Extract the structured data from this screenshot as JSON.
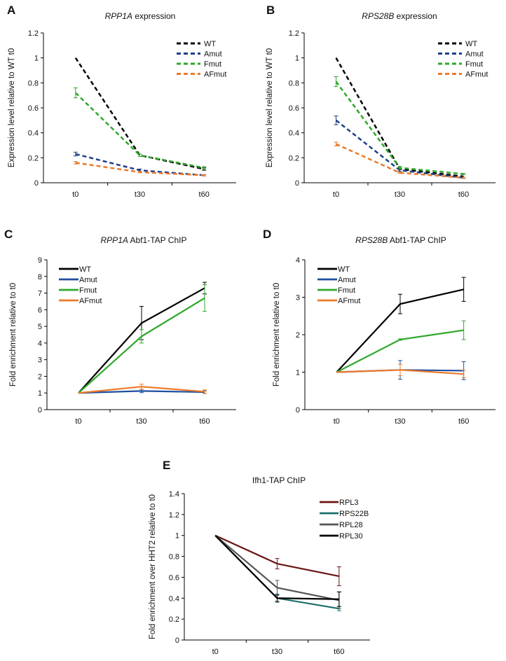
{
  "chart_data": [
    {
      "panel": "A",
      "type": "line",
      "title_italic": "RPP1A",
      "title_rest": " expression",
      "xlabel": "",
      "ylabel": "Expression level relative to WT t0",
      "categories": [
        "t0",
        "t30",
        "t60"
      ],
      "ylim": [
        0,
        1.2
      ],
      "yticks": [
        "0",
        "0.2",
        "0.4",
        "0.6",
        "0.8",
        "1",
        "1.2"
      ],
      "ytick_values": [
        0,
        0.2,
        0.4,
        0.6,
        0.8,
        1,
        1.2
      ],
      "line_style": "dashed",
      "legend": "top-right",
      "grid": false,
      "series": [
        {
          "name": "WT",
          "color": "#000000",
          "values": [
            1,
            0.22,
            0.11
          ],
          "errors": [
            0,
            0,
            0.01
          ]
        },
        {
          "name": "Amut",
          "color": "#1f3f88",
          "values": [
            0.23,
            0.1,
            0.06
          ],
          "errors": [
            0.015,
            0.01,
            0.005
          ]
        },
        {
          "name": "Fmut",
          "color": "#2ea82a",
          "values": [
            0.72,
            0.22,
            0.12
          ],
          "errors": [
            0.04,
            0.01,
            0.01
          ]
        },
        {
          "name": "AFmut",
          "color": "#ec7a2a",
          "values": [
            0.16,
            0.085,
            0.06
          ],
          "errors": [
            0.01,
            0.005,
            0.005
          ]
        }
      ]
    },
    {
      "panel": "B",
      "type": "line",
      "title_italic": "RPS28B",
      "title_rest": " expression",
      "xlabel": "",
      "ylabel": "Expression level relative to WT t0",
      "categories": [
        "t0",
        "t30",
        "t60"
      ],
      "ylim": [
        0,
        1.2
      ],
      "yticks": [
        "0",
        "0.2",
        "0.4",
        "0.6",
        "0.8",
        "1",
        "1.2"
      ],
      "ytick_values": [
        0,
        0.2,
        0.4,
        0.6,
        0.8,
        1,
        1.2
      ],
      "line_style": "dashed",
      "legend": "top-right",
      "grid": false,
      "series": [
        {
          "name": "WT",
          "color": "#000000",
          "values": [
            1,
            0.11,
            0.05
          ],
          "errors": [
            0,
            0,
            0
          ]
        },
        {
          "name": "Amut",
          "color": "#1f3f88",
          "values": [
            0.5,
            0.1,
            0.04
          ],
          "errors": [
            0.035,
            0.01,
            0.005
          ]
        },
        {
          "name": "Fmut",
          "color": "#2ea82a",
          "values": [
            0.81,
            0.12,
            0.07
          ],
          "errors": [
            0.04,
            0.01,
            0.005
          ]
        },
        {
          "name": "AFmut",
          "color": "#ec7a2a",
          "values": [
            0.31,
            0.08,
            0.04
          ],
          "errors": [
            0.015,
            0.005,
            0.005
          ]
        }
      ]
    },
    {
      "panel": "C",
      "type": "line",
      "title_italic": "RPP1A",
      "title_rest": " Abf1-TAP ChIP",
      "xlabel": "",
      "ylabel": "Fold enrichment relative to t0",
      "categories": [
        "t0",
        "t30",
        "t60"
      ],
      "ylim": [
        0,
        9
      ],
      "yticks": [
        "0",
        "1",
        "2",
        "3",
        "4",
        "5",
        "6",
        "7",
        "8",
        "9"
      ],
      "ytick_values": [
        0,
        1,
        2,
        3,
        4,
        5,
        6,
        7,
        8,
        9
      ],
      "line_style": "solid",
      "legend": "top-left",
      "grid": false,
      "series": [
        {
          "name": "WT",
          "color": "#000000",
          "values": [
            1,
            5.2,
            7.3
          ],
          "errors": [
            0,
            1.0,
            0.35
          ]
        },
        {
          "name": "Amut",
          "color": "#1f4f9f",
          "values": [
            1,
            1.12,
            1.05
          ],
          "errors": [
            0,
            0.1,
            0.08
          ]
        },
        {
          "name": "Fmut",
          "color": "#2ea82a",
          "values": [
            1,
            4.4,
            6.7
          ],
          "errors": [
            0,
            0.4,
            0.8
          ]
        },
        {
          "name": "AFmut",
          "color": "#ec7a2a",
          "values": [
            1,
            1.38,
            1.08
          ],
          "errors": [
            0,
            0.15,
            0.1
          ]
        }
      ]
    },
    {
      "panel": "D",
      "type": "line",
      "title_italic": "RPS28B",
      "title_rest": " Abf1-TAP ChIP",
      "xlabel": "",
      "ylabel": "Fold enrichment relative  to t0",
      "categories": [
        "t0",
        "t30",
        "t60"
      ],
      "ylim": [
        0,
        4
      ],
      "yticks": [
        "0",
        "1",
        "2",
        "3",
        "4"
      ],
      "ytick_values": [
        0,
        1,
        2,
        3,
        4
      ],
      "line_style": "solid",
      "legend": "top-left",
      "grid": false,
      "series": [
        {
          "name": "WT",
          "color": "#000000",
          "values": [
            1,
            2.82,
            3.21
          ],
          "errors": [
            0,
            0.26,
            0.32
          ]
        },
        {
          "name": "Amut",
          "color": "#1f4f9f",
          "values": [
            1,
            1.06,
            1.04
          ],
          "errors": [
            0,
            0.25,
            0.24
          ]
        },
        {
          "name": "Fmut",
          "color": "#2ea82a",
          "values": [
            1,
            1.87,
            2.12
          ],
          "errors": [
            0,
            0.02,
            0.25
          ]
        },
        {
          "name": "AFmut",
          "color": "#ec7a2a",
          "values": [
            1,
            1.06,
            0.95
          ],
          "errors": [
            0,
            0.15,
            0.1
          ]
        }
      ]
    },
    {
      "panel": "E",
      "type": "line",
      "title_italic": "",
      "title_rest": "Ifh1-TAP ChIP",
      "xlabel": "",
      "ylabel": "Fold enrichment over HHT2 relative to t0",
      "categories": [
        "t0",
        "t30",
        "t60"
      ],
      "ylim": [
        0,
        1.4
      ],
      "yticks": [
        "0",
        "0.2",
        "0.4",
        "0.6",
        "0.8",
        "1",
        "1.2",
        "1.4"
      ],
      "ytick_values": [
        0,
        0.2,
        0.4,
        0.6,
        0.8,
        1,
        1.2,
        1.4
      ],
      "line_style": "solid",
      "legend": "top-right",
      "grid": false,
      "series": [
        {
          "name": "RPL3",
          "color": "#6b1414",
          "values": [
            1,
            0.73,
            0.61
          ],
          "errors": [
            0,
            0.05,
            0.09
          ]
        },
        {
          "name": "RPS22B",
          "color": "#1c6e6a",
          "values": [
            1,
            0.4,
            0.3
          ],
          "errors": [
            0,
            0.04,
            0.02
          ]
        },
        {
          "name": "RPL28",
          "color": "#555555",
          "values": [
            1,
            0.5,
            0.38
          ],
          "errors": [
            0,
            0.07,
            0.08
          ]
        },
        {
          "name": "RPL30",
          "color": "#000000",
          "values": [
            1,
            0.4,
            0.39
          ],
          "errors": [
            0,
            0.03,
            0.07
          ]
        }
      ]
    }
  ]
}
